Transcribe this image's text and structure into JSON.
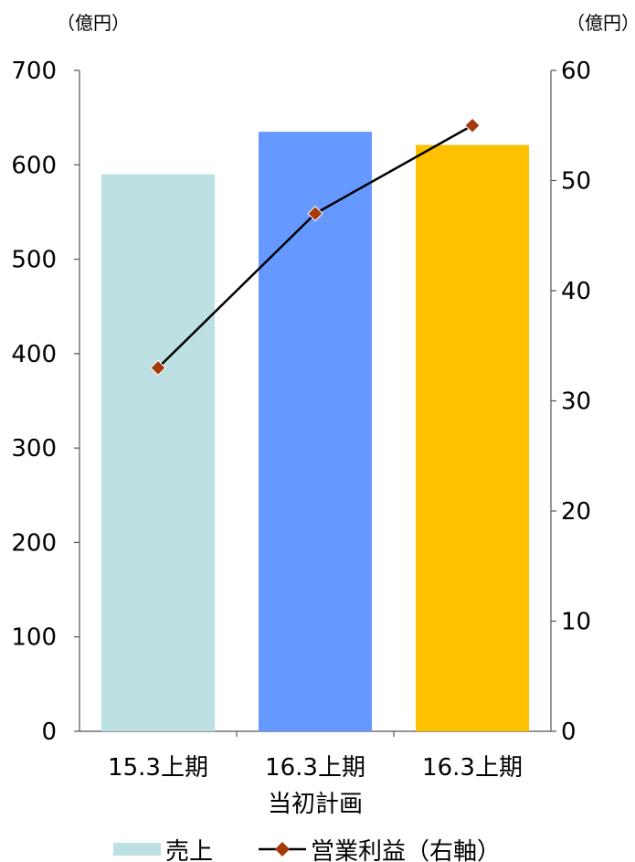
{
  "chart_data": {
    "type": "bar+line",
    "left_unit": "（億円）",
    "right_unit": "（億円）",
    "categories": [
      [
        "15.3上期"
      ],
      [
        "16.3上期",
        "当初計画"
      ],
      [
        "16.3上期"
      ]
    ],
    "series": [
      {
        "name": "売上",
        "type": "bar",
        "axis": "left",
        "values": [
          590,
          635,
          621
        ],
        "colors": [
          "#bde0e3",
          "#6699ff",
          "#ffc000"
        ]
      },
      {
        "name": "営業利益（右軸）",
        "type": "line",
        "axis": "right",
        "values": [
          33,
          47,
          55
        ],
        "color": "#000000",
        "marker_color": "#a63a0a"
      }
    ],
    "left_axis": {
      "ticks": [
        "0",
        "100",
        "200",
        "300",
        "400",
        "500",
        "600",
        "700"
      ],
      "min": 0,
      "max": 700
    },
    "right_axis": {
      "ticks": [
        "0",
        "10",
        "20",
        "30",
        "40",
        "50",
        "60"
      ],
      "min": 0,
      "max": 60
    },
    "legend": [
      {
        "label": "売上",
        "kind": "bar",
        "color": "#bde0e3"
      },
      {
        "label": "営業利益（右軸）",
        "kind": "line-marker",
        "color": "#a63a0a"
      }
    ],
    "legend_position": "bottom",
    "grid": false
  }
}
